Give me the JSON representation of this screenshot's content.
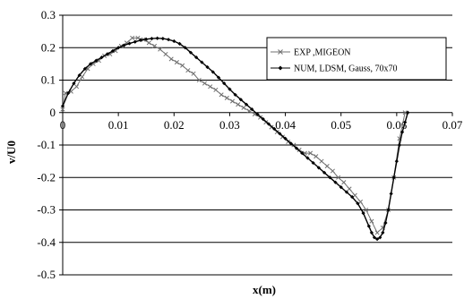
{
  "chart_data": {
    "type": "line",
    "title": "",
    "xlabel": "x(m)",
    "ylabel": "v/U0",
    "xlim": [
      0,
      0.07
    ],
    "ylim": [
      -0.5,
      0.3
    ],
    "x_ticks": [
      "0",
      "0.01",
      "0.02",
      "0.03",
      "0.04",
      "0.05",
      "0.06",
      "0.07"
    ],
    "y_ticks": [
      "0.3",
      "0.2",
      "0.1",
      "0",
      "-0.1",
      "-0.2",
      "-0.3",
      "-0.4",
      "-0.5"
    ],
    "grid": "horizontal",
    "legend": "top-right",
    "series": [
      {
        "name": "EXP ,MIGEON",
        "color": "#707070",
        "marker": "x",
        "x": [
          0.0,
          0.0005,
          0.0015,
          0.0025,
          0.0035,
          0.0045,
          0.0055,
          0.0065,
          0.0075,
          0.0085,
          0.0095,
          0.0105,
          0.0115,
          0.0125,
          0.0135,
          0.0145,
          0.0155,
          0.0165,
          0.0175,
          0.0185,
          0.0195,
          0.0205,
          0.0215,
          0.0225,
          0.0235,
          0.0245,
          0.0255,
          0.0265,
          0.0275,
          0.0285,
          0.0295,
          0.0305,
          0.0315,
          0.0325,
          0.0335,
          0.0345,
          0.0355,
          0.0365,
          0.0375,
          0.0385,
          0.0395,
          0.0405,
          0.0415,
          0.0425,
          0.0435,
          0.0445,
          0.0455,
          0.0465,
          0.0475,
          0.0485,
          0.0495,
          0.0505,
          0.0515,
          0.0525,
          0.0535,
          0.0545,
          0.0555,
          0.0565,
          0.0575,
          0.0585,
          0.0595,
          0.0605,
          0.0615
        ],
        "y": [
          0.01,
          0.06,
          0.065,
          0.08,
          0.11,
          0.135,
          0.15,
          0.16,
          0.175,
          0.18,
          0.19,
          0.205,
          0.215,
          0.23,
          0.23,
          0.225,
          0.215,
          0.205,
          0.195,
          0.18,
          0.165,
          0.155,
          0.145,
          0.13,
          0.12,
          0.1,
          0.09,
          0.08,
          0.07,
          0.055,
          0.045,
          0.035,
          0.025,
          0.015,
          0.005,
          -0.005,
          -0.015,
          -0.03,
          -0.045,
          -0.06,
          -0.075,
          -0.09,
          -0.1,
          -0.115,
          -0.125,
          -0.125,
          -0.135,
          -0.15,
          -0.165,
          -0.18,
          -0.2,
          -0.215,
          -0.235,
          -0.255,
          -0.275,
          -0.3,
          -0.335,
          -0.37,
          -0.355,
          -0.3,
          -0.2,
          -0.08,
          0.0
        ]
      },
      {
        "name": "NUM, LDSM, Gauss, 70x70",
        "color": "#000000",
        "marker": "diamond",
        "x": [
          0.0,
          0.001,
          0.002,
          0.003,
          0.004,
          0.005,
          0.006,
          0.007,
          0.008,
          0.009,
          0.01,
          0.011,
          0.012,
          0.013,
          0.014,
          0.015,
          0.016,
          0.017,
          0.018,
          0.019,
          0.02,
          0.021,
          0.022,
          0.023,
          0.024,
          0.025,
          0.026,
          0.027,
          0.028,
          0.029,
          0.03,
          0.031,
          0.032,
          0.033,
          0.034,
          0.035,
          0.036,
          0.037,
          0.038,
          0.039,
          0.04,
          0.041,
          0.042,
          0.043,
          0.044,
          0.045,
          0.046,
          0.047,
          0.048,
          0.049,
          0.05,
          0.051,
          0.052,
          0.053,
          0.054,
          0.055,
          0.0555,
          0.056,
          0.0565,
          0.057,
          0.0575,
          0.058,
          0.0585,
          0.059,
          0.0595,
          0.06,
          0.0605,
          0.061,
          0.0615,
          0.062
        ],
        "y": [
          0.02,
          0.06,
          0.09,
          0.115,
          0.135,
          0.15,
          0.16,
          0.17,
          0.18,
          0.19,
          0.2,
          0.207,
          0.213,
          0.218,
          0.223,
          0.226,
          0.228,
          0.229,
          0.228,
          0.225,
          0.22,
          0.212,
          0.2,
          0.185,
          0.17,
          0.155,
          0.14,
          0.125,
          0.108,
          0.09,
          0.072,
          0.055,
          0.04,
          0.025,
          0.01,
          -0.005,
          -0.02,
          -0.035,
          -0.05,
          -0.065,
          -0.08,
          -0.095,
          -0.11,
          -0.125,
          -0.14,
          -0.155,
          -0.17,
          -0.185,
          -0.2,
          -0.215,
          -0.23,
          -0.245,
          -0.26,
          -0.28,
          -0.31,
          -0.35,
          -0.37,
          -0.385,
          -0.39,
          -0.385,
          -0.37,
          -0.34,
          -0.3,
          -0.25,
          -0.2,
          -0.15,
          -0.1,
          -0.06,
          -0.03,
          0.0
        ]
      }
    ]
  }
}
